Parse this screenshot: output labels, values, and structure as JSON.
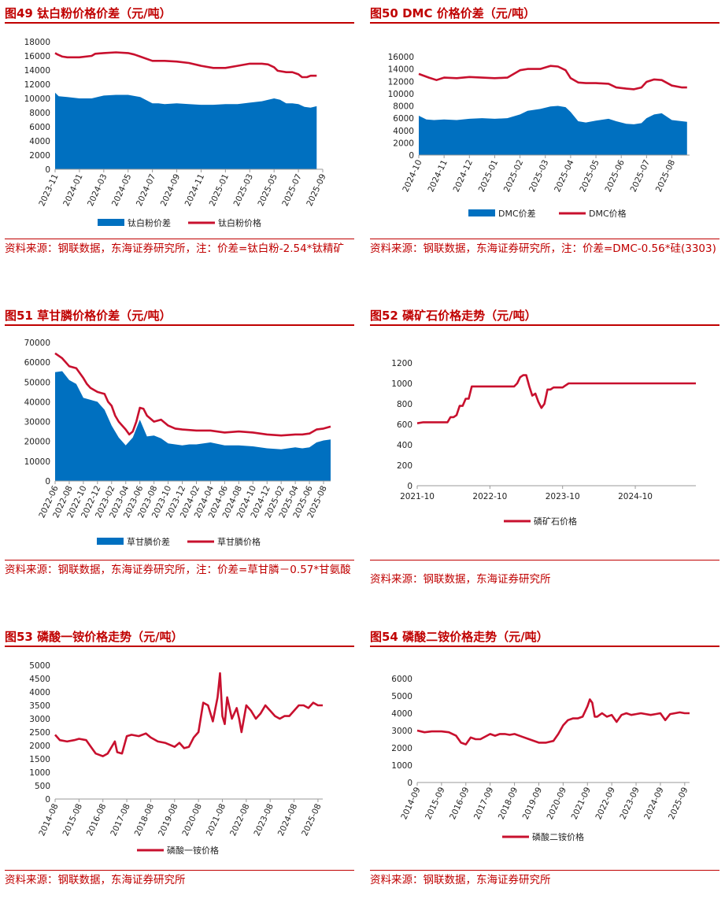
{
  "colors": {
    "accent": "#c00000",
    "price_line": "#c8102e",
    "spread_fill": "#0070c0",
    "axis": "#999999"
  },
  "chart_data": [
    {
      "id": "chart49",
      "type": "area+line",
      "title": "图49  钛白粉价格价差（元/吨）",
      "source": "资料来源：钢联数据，东海证券研究所，注：价差=钛白粉-2.54*钛精矿",
      "yticks": [
        0,
        2000,
        4000,
        6000,
        8000,
        10000,
        12000,
        14000,
        16000,
        18000
      ],
      "ylim": [
        0,
        18000
      ],
      "xlabels": [
        "2023-11",
        "2024-01",
        "2024-03",
        "2024-05",
        "2024-07",
        "2024-09",
        "2024-11",
        "2025-01",
        "2025-03",
        "2025-05",
        "2025-07",
        "2025-09"
      ],
      "xlim": [
        0,
        22
      ],
      "xlabel_step": 2,
      "xlabel_rotate": true,
      "series": [
        {
          "name": "钛白粉价差",
          "kind": "area",
          "x": [
            0,
            0.3,
            1,
            2,
            3,
            4,
            5,
            6,
            7,
            8,
            8.5,
            9,
            10,
            11,
            12,
            13,
            14,
            15,
            16,
            17,
            18,
            18.5,
            19,
            19.5,
            20,
            20.5,
            21,
            21.5
          ],
          "y": [
            10800,
            10300,
            10200,
            10000,
            10000,
            10400,
            10500,
            10500,
            10200,
            9300,
            9300,
            9200,
            9300,
            9200,
            9100,
            9100,
            9200,
            9200,
            9400,
            9600,
            10000,
            9800,
            9300,
            9300,
            9200,
            8800,
            8700,
            8900
          ]
        },
        {
          "name": "钛白粉价格",
          "kind": "line",
          "x": [
            0,
            0.2,
            0.6,
            1,
            2,
            3,
            3.3,
            4,
            5,
            6,
            6.5,
            7,
            8,
            8.5,
            9,
            10,
            11,
            12,
            13,
            14,
            15,
            16,
            17,
            17.5,
            18,
            18.3,
            19,
            19.5,
            20,
            20.3,
            20.7,
            21,
            21.5
          ],
          "y": [
            16400,
            16200,
            15900,
            15800,
            15800,
            16000,
            16300,
            16400,
            16500,
            16400,
            16200,
            15900,
            15300,
            15300,
            15300,
            15200,
            15000,
            14600,
            14300,
            14300,
            14600,
            14900,
            14900,
            14800,
            14400,
            13900,
            13700,
            13700,
            13400,
            13000,
            13000,
            13200,
            13200
          ]
        }
      ]
    },
    {
      "id": "chart50",
      "type": "area+line",
      "title": "图50  DMC 价格价差（元/吨）",
      "source": "资料来源：钢联数据，东海证券研究所，注：价差=DMC-0.56*硅(3303)",
      "yticks": [
        0,
        2000,
        4000,
        6000,
        8000,
        10000,
        12000,
        14000,
        16000
      ],
      "ylim": [
        0,
        16000
      ],
      "xlabels": [
        "2024-10",
        "2024-11",
        "2024-12",
        "2025-01",
        "2025-02",
        "2025-03",
        "2025-04",
        "2025-05",
        "2025-06",
        "2025-07",
        "2025-08"
      ],
      "xlim": [
        0,
        10.7
      ],
      "xlabel_step": 1,
      "xlabel_rotate": true,
      "series": [
        {
          "name": "DMC价差",
          "kind": "area",
          "x": [
            0,
            0.3,
            0.6,
            1,
            1.5,
            2,
            2.5,
            3,
            3.5,
            4,
            4.3,
            4.8,
            5.2,
            5.5,
            5.8,
            6,
            6.3,
            6.6,
            7,
            7.5,
            7.8,
            8.2,
            8.5,
            8.8,
            9,
            9.3,
            9.6,
            10,
            10.4,
            10.6
          ],
          "y": [
            6400,
            5800,
            5700,
            5800,
            5700,
            5900,
            6000,
            5900,
            6000,
            6600,
            7200,
            7500,
            7900,
            8000,
            7800,
            7000,
            5500,
            5300,
            5600,
            5900,
            5500,
            5100,
            5000,
            5200,
            6000,
            6600,
            6800,
            5700,
            5500,
            5400
          ]
        },
        {
          "name": "DMC价格",
          "kind": "line",
          "x": [
            0,
            0.4,
            0.7,
            1,
            1.5,
            2,
            2.5,
            3,
            3.5,
            4,
            4.3,
            4.8,
            5.2,
            5.5,
            5.8,
            6,
            6.3,
            6.6,
            7,
            7.5,
            7.8,
            8.2,
            8.5,
            8.8,
            9,
            9.3,
            9.6,
            10,
            10.4,
            10.6
          ],
          "y": [
            13200,
            12600,
            12200,
            12600,
            12500,
            12700,
            12600,
            12500,
            12600,
            13800,
            14000,
            14000,
            14500,
            14400,
            13800,
            12500,
            11800,
            11700,
            11700,
            11600,
            11000,
            10800,
            10700,
            11000,
            11900,
            12300,
            12200,
            11300,
            11000,
            11000
          ]
        }
      ]
    },
    {
      "id": "chart51",
      "type": "area+line",
      "title": "图51  草甘膦价格价差（元/吨）",
      "source": "资料来源：钢联数据，东海证券研究所，注：价差=草甘膦－0.57*甘氨酸",
      "yticks": [
        0,
        10000,
        20000,
        30000,
        40000,
        50000,
        60000,
        70000
      ],
      "ylim": [
        0,
        70000
      ],
      "xlabels": [
        "2022-06",
        "2022-08",
        "2022-10",
        "2022-12",
        "2023-02",
        "2023-04",
        "2023-06",
        "2023-08",
        "2023-10",
        "2023-12",
        "2024-02",
        "2024-04",
        "2024-06",
        "2024-08",
        "2024-10",
        "2024-12",
        "2025-02",
        "2025-04",
        "2025-06",
        "2025-08"
      ],
      "xlim": [
        0,
        39
      ],
      "xlabel_step": 2,
      "xlabel_rotate": true,
      "series": [
        {
          "name": "草甘膦价差",
          "kind": "area",
          "x": [
            0,
            1,
            2,
            3,
            4,
            5,
            6,
            7,
            8,
            9,
            10,
            11,
            12,
            13,
            14,
            15,
            16,
            17,
            18,
            19,
            20,
            21,
            22,
            24,
            26,
            28,
            30,
            32,
            34,
            35,
            36,
            37,
            38,
            39
          ],
          "y": [
            55000,
            55500,
            51000,
            49000,
            42000,
            41000,
            40000,
            36000,
            28000,
            22000,
            18000,
            22000,
            31000,
            22500,
            23000,
            21500,
            19000,
            18500,
            18000,
            18500,
            18500,
            19000,
            19500,
            18000,
            18000,
            17500,
            16500,
            16000,
            17000,
            16500,
            17000,
            19500,
            20500,
            21000
          ]
        },
        {
          "name": "草甘膦价格",
          "kind": "line",
          "x": [
            0,
            1,
            2,
            3,
            4,
            4.5,
            5,
            6,
            7,
            7.5,
            8,
            8.5,
            9,
            10,
            10.5,
            11,
            11.5,
            12,
            12.5,
            13,
            14,
            15,
            16,
            17,
            18,
            20,
            22,
            24,
            26,
            28,
            30,
            32,
            34,
            35,
            36,
            37,
            38,
            39
          ],
          "y": [
            64500,
            62000,
            58000,
            57000,
            52000,
            49000,
            47000,
            45000,
            44000,
            40000,
            38000,
            33000,
            30000,
            26000,
            23500,
            25000,
            30000,
            37000,
            36500,
            33000,
            30000,
            31000,
            28000,
            26500,
            26000,
            25500,
            25500,
            24500,
            25000,
            24500,
            23500,
            23000,
            23500,
            23500,
            24000,
            26000,
            26500,
            27500
          ]
        }
      ]
    },
    {
      "id": "chart52",
      "type": "line",
      "title": "图52  磷矿石价格走势（元/吨）",
      "source": "资料来源：钢联数据，东海证券研究所",
      "yticks": [
        0,
        200,
        400,
        600,
        800,
        1000,
        1200
      ],
      "ylim": [
        0,
        1200
      ],
      "xlabels": [
        "2021-10",
        "2022-10",
        "2023-10",
        "2024-10"
      ],
      "xlabel_positions": [
        0,
        12,
        24,
        36
      ],
      "xlim": [
        0,
        46
      ],
      "xlabel_rotate": false,
      "series": [
        {
          "name": "磷矿石价格",
          "kind": "line",
          "x": [
            0,
            1,
            2,
            3,
            4,
            5,
            5.5,
            6,
            6.5,
            7,
            7.5,
            8,
            8.5,
            9,
            10,
            11,
            12,
            13,
            14,
            15,
            16,
            16.5,
            17,
            17.5,
            18,
            18.5,
            19,
            19.5,
            20,
            20.5,
            21,
            21.5,
            22,
            22.5,
            23,
            23.5,
            24,
            24.5,
            25,
            26,
            27,
            30,
            34,
            38,
            42,
            46
          ],
          "y": [
            610,
            620,
            620,
            620,
            620,
            620,
            670,
            670,
            690,
            780,
            780,
            850,
            850,
            970,
            970,
            970,
            970,
            970,
            970,
            970,
            970,
            1000,
            1060,
            1080,
            1080,
            970,
            880,
            900,
            820,
            760,
            800,
            940,
            940,
            960,
            960,
            960,
            960,
            980,
            1000,
            1000,
            1000,
            1000,
            1000,
            1000,
            1000,
            1000
          ]
        }
      ]
    },
    {
      "id": "chart53",
      "type": "line",
      "title": "图53  磷酸一铵价格走势（元/吨）",
      "source": "资料来源：钢联数据，东海证券研究所",
      "yticks": [
        0,
        500,
        1000,
        1500,
        2000,
        2500,
        3000,
        3500,
        4000,
        4500,
        5000
      ],
      "ylim": [
        0,
        5000
      ],
      "xlabels": [
        "2014-08",
        "2015-08",
        "2016-08",
        "2017-08",
        "2018-08",
        "2019-08",
        "2020-08",
        "2021-08",
        "2022-08",
        "2023-08",
        "2024-08",
        "2025-08"
      ],
      "xlim": [
        0,
        11.2
      ],
      "xlabel_step": 1,
      "xlabel_rotate": true,
      "series": [
        {
          "name": "磷酸一铵价格",
          "kind": "line",
          "x": [
            0,
            0.2,
            0.5,
            0.8,
            1,
            1.3,
            1.5,
            1.7,
            2,
            2.2,
            2.5,
            2.6,
            2.8,
            3,
            3.2,
            3.5,
            3.8,
            4,
            4.3,
            4.6,
            5,
            5.2,
            5.4,
            5.6,
            5.8,
            6,
            6.2,
            6.4,
            6.6,
            6.8,
            6.9,
            7,
            7.1,
            7.2,
            7.4,
            7.6,
            7.7,
            7.8,
            8,
            8.2,
            8.4,
            8.6,
            8.8,
            9,
            9.2,
            9.4,
            9.6,
            9.8,
            10,
            10.2,
            10.4,
            10.6,
            10.8,
            11,
            11.2
          ],
          "y": [
            2400,
            2200,
            2150,
            2200,
            2250,
            2200,
            1950,
            1700,
            1600,
            1700,
            2150,
            1750,
            1700,
            2350,
            2400,
            2350,
            2450,
            2300,
            2150,
            2100,
            1950,
            2100,
            1900,
            1950,
            2300,
            2500,
            3600,
            3500,
            2900,
            3800,
            4700,
            3100,
            2800,
            3800,
            3000,
            3400,
            3000,
            2500,
            3500,
            3300,
            3000,
            3200,
            3500,
            3300,
            3100,
            3000,
            3100,
            3100,
            3300,
            3500,
            3500,
            3400,
            3600,
            3500,
            3500
          ]
        }
      ]
    },
    {
      "id": "chart54",
      "type": "line",
      "title": "图54  磷酸二铵价格走势（元/吨）",
      "source": "资料来源：钢联数据，东海证券研究所",
      "yticks": [
        0,
        1000,
        2000,
        3000,
        4000,
        5000,
        6000
      ],
      "ylim": [
        0,
        6000
      ],
      "xlabels": [
        "2014-09",
        "2015-09",
        "2016-09",
        "2017-09",
        "2018-09",
        "2019-09",
        "2020-09",
        "2021-09",
        "2022-09",
        "2023-09",
        "2024-09",
        "2025-09"
      ],
      "xlim": [
        0,
        11.2
      ],
      "xlabel_step": 1,
      "xlabel_rotate": true,
      "series": [
        {
          "name": "磷酸二铵价格",
          "kind": "line",
          "x": [
            0,
            0.3,
            0.6,
            1,
            1.3,
            1.6,
            1.8,
            2,
            2.2,
            2.4,
            2.6,
            3,
            3.2,
            3.4,
            3.6,
            3.8,
            4,
            4.3,
            4.6,
            5,
            5.3,
            5.6,
            5.8,
            6,
            6.2,
            6.4,
            6.6,
            6.8,
            7,
            7.1,
            7.2,
            7.3,
            7.4,
            7.5,
            7.6,
            7.8,
            8,
            8.2,
            8.4,
            8.6,
            8.8,
            9,
            9.2,
            9.4,
            9.6,
            9.8,
            10,
            10.2,
            10.4,
            10.6,
            10.8,
            11,
            11.2
          ],
          "y": [
            3000,
            2900,
            2950,
            2950,
            2900,
            2700,
            2300,
            2200,
            2600,
            2500,
            2500,
            2800,
            2700,
            2800,
            2800,
            2750,
            2800,
            2650,
            2500,
            2300,
            2300,
            2400,
            2800,
            3300,
            3600,
            3700,
            3700,
            3800,
            4400,
            4800,
            4600,
            3800,
            3800,
            3900,
            4000,
            3800,
            3900,
            3500,
            3900,
            4000,
            3900,
            3950,
            4000,
            3950,
            3900,
            3950,
            4000,
            3600,
            3950,
            4000,
            4050,
            4000,
            4000
          ]
        }
      ]
    }
  ]
}
